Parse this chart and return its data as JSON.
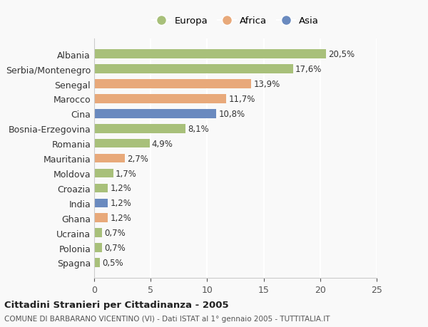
{
  "countries": [
    "Albania",
    "Serbia/Montenegro",
    "Senegal",
    "Marocco",
    "Cina",
    "Bosnia-Erzegovina",
    "Romania",
    "Mauritania",
    "Moldova",
    "Croazia",
    "India",
    "Ghana",
    "Ucraina",
    "Polonia",
    "Spagna"
  ],
  "values": [
    20.5,
    17.6,
    13.9,
    11.7,
    10.8,
    8.1,
    4.9,
    2.7,
    1.7,
    1.2,
    1.2,
    1.2,
    0.7,
    0.7,
    0.5
  ],
  "labels": [
    "20,5%",
    "17,6%",
    "13,9%",
    "11,7%",
    "10,8%",
    "8,1%",
    "4,9%",
    "2,7%",
    "1,7%",
    "1,2%",
    "1,2%",
    "1,2%",
    "0,7%",
    "0,7%",
    "0,5%"
  ],
  "continents": [
    "Europa",
    "Europa",
    "Africa",
    "Africa",
    "Asia",
    "Europa",
    "Europa",
    "Africa",
    "Europa",
    "Europa",
    "Asia",
    "Africa",
    "Europa",
    "Europa",
    "Europa"
  ],
  "colors": {
    "Europa": "#a8c07a",
    "Africa": "#e8a97a",
    "Asia": "#6a8abf"
  },
  "xlim": [
    0,
    25
  ],
  "xticks": [
    0,
    5,
    10,
    15,
    20,
    25
  ],
  "title_bold": "Cittadini Stranieri per Cittadinanza - 2005",
  "subtitle": "COMUNE DI BARBARANO VICENTINO (VI) - Dati ISTAT al 1° gennaio 2005 - TUTTITALIA.IT",
  "background_color": "#f9f9f9",
  "grid_color": "#ffffff",
  "bar_height": 0.6
}
